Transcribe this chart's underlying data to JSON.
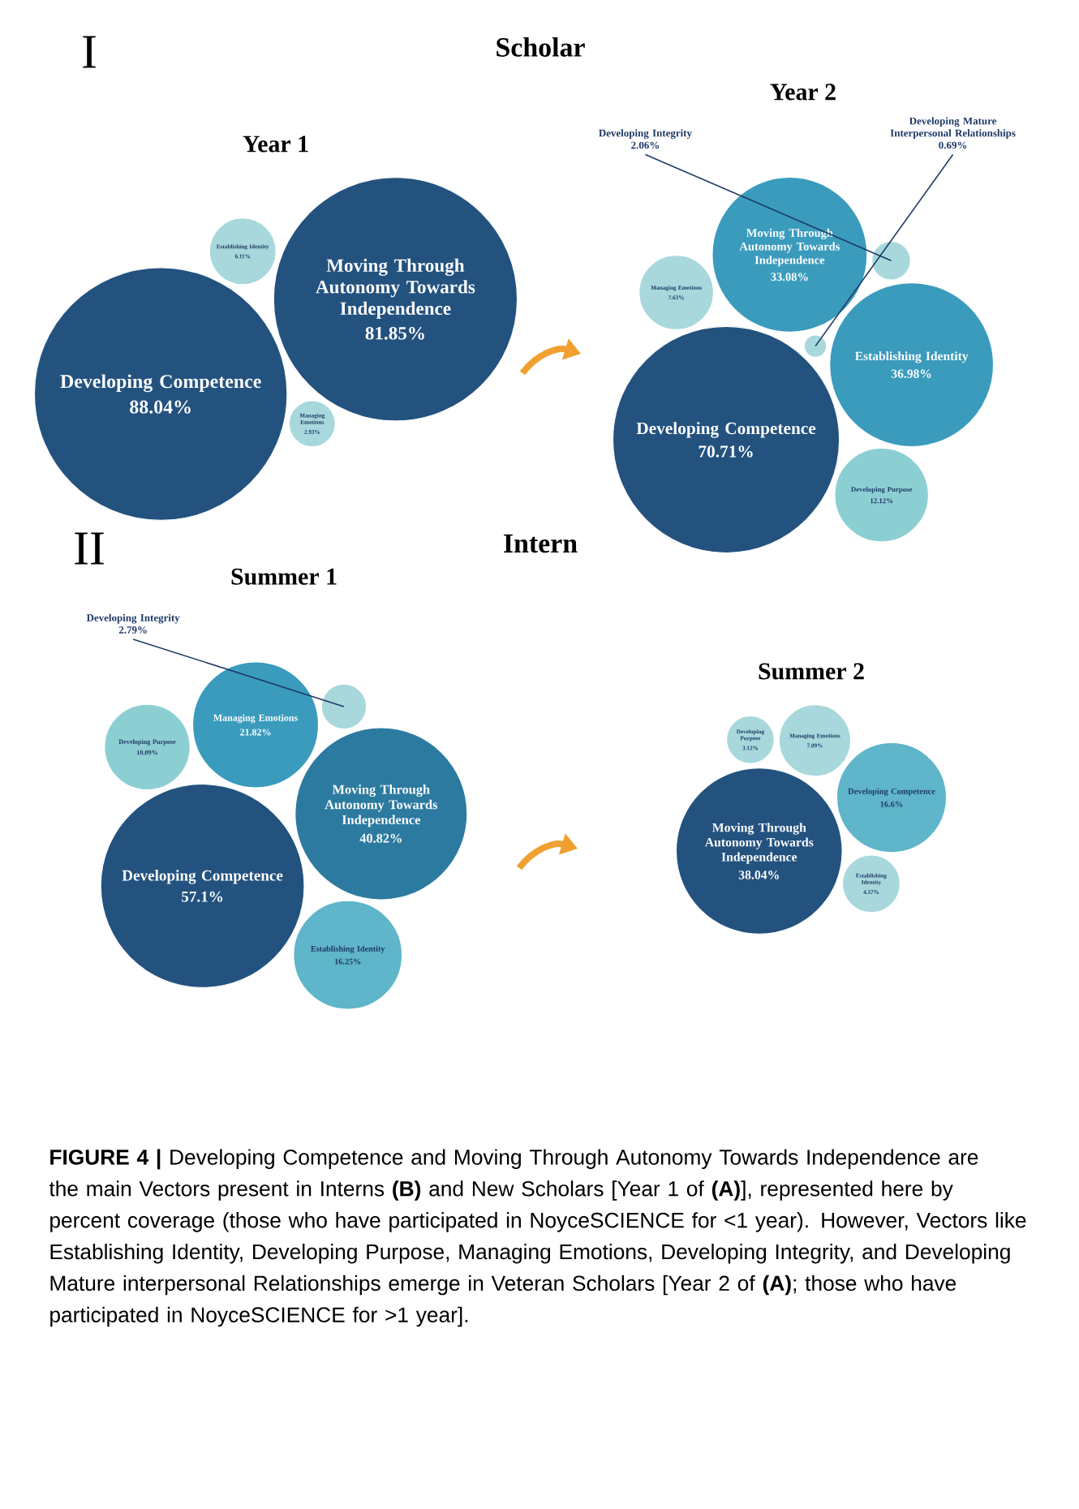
{
  "chart_data": [
    {
      "type": "other",
      "title": "Year 1",
      "annotations": [
        "I",
        "Scholar"
      ],
      "categories": [
        "Developing Competence",
        "Moving Through Autonomy Towards Independence",
        "Establishing Identity",
        "Managing Emotions"
      ],
      "values": [
        88.04,
        81.85,
        6.11,
        2.93
      ],
      "value_labels": [
        "88.04%",
        "81.85%",
        "6.11%",
        "2.93%"
      ],
      "colors": [
        "#23527f",
        "#23527f",
        "#a8d8db",
        "#a8d8db"
      ]
    },
    {
      "type": "other",
      "title": "Year 2",
      "categories": [
        "Developing Competence",
        "Moving Through Autonomy Towards Independence",
        "Establishing Identity",
        "Developing Purpose",
        "Managing Emotions",
        "Developing Integrity",
        "Developing Mature Interpersonal Relationships"
      ],
      "values": [
        70.71,
        33.08,
        36.98,
        12.12,
        7.63,
        2.06,
        0.69
      ],
      "value_labels": [
        "70.71%",
        "33.08%",
        "36.98%",
        "12.12%",
        "7.63%",
        "2.06%",
        "0.69%"
      ],
      "colors": [
        "#23527f",
        "#3a9bbd",
        "#3a9bbd",
        "#8ccfd3",
        "#a8d8db",
        "#a8d8db",
        "#a8d8db"
      ]
    },
    {
      "type": "other",
      "title": "Summer 1",
      "annotations": [
        "II",
        "Intern"
      ],
      "categories": [
        "Developing Competence",
        "Moving Through Autonomy Towards Independence",
        "Managing Emotions",
        "Establishing Identity",
        "Developing Purpose",
        "Developing Integrity"
      ],
      "values": [
        57.1,
        40.82,
        21.82,
        16.25,
        10.09,
        2.79
      ],
      "value_labels": [
        "57.1%",
        "40.82%",
        "21.82%",
        "16.25%",
        "10.09%",
        "2.79%"
      ],
      "colors": [
        "#23527f",
        "#2c7aa0",
        "#3a9bbd",
        "#5fb5c9",
        "#8ccfd3",
        "#a8d8db"
      ]
    },
    {
      "type": "other",
      "title": "Summer 2",
      "annotations": [
        "**FIGURE 4 |** Developing Competence and Moving Through Autonomy Towards Independence are the main Vectors present in Interns **(B)** and New Scholars [Year 1 of **(A)**], represented here by percent coverage (those who have participated in NoyceSCIENCE for <1 year). However, Vectors like Establishing Identity, Developing Purpose, Managing Emotions, Developing Integrity, and Developing Mature interpersonal Relationships emerge in Veteran Scholars [Year 2 of **(A)**; those who have participated in NoyceSCIENCE for >1 year]."
      ],
      "categories": [
        "Moving Through Autonomy Towards Independence",
        "Developing Competence",
        "Managing Emotions",
        "Establishing Identity",
        "Developing Purpose"
      ],
      "values": [
        38.04,
        16.6,
        7.09,
        4.57,
        3.12
      ],
      "value_labels": [
        "38.04%",
        "16.6%",
        "7.09%",
        "4.57%",
        "3.12%"
      ],
      "colors": [
        "#23527f",
        "#5fb5c9",
        "#a8d8db",
        "#a8d8db",
        "#a8d8db"
      ]
    }
  ]
}
